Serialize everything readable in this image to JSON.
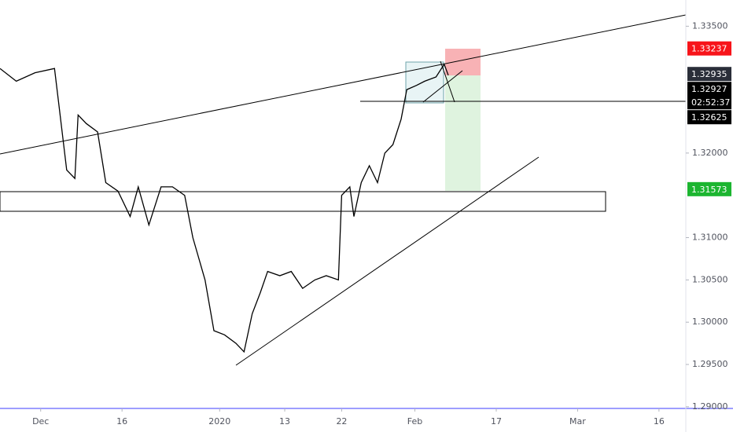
{
  "chart_data": {
    "type": "line",
    "x": [
      -5,
      -3,
      -0.7,
      1.7,
      2.2,
      3.2,
      4.2,
      4.6,
      5.6,
      7,
      8,
      9.5,
      11,
      12,
      13.3,
      14.8,
      16.2,
      17.7,
      18.7,
      20.2,
      21.3,
      22.6,
      24,
      25,
      26,
      27,
      27.9,
      29.4,
      30.8,
      32.2,
      33.7,
      35.1,
      36.6,
      37,
      38,
      38.5,
      39.4,
      40.4,
      41.4,
      42.3,
      43.3,
      44.3,
      45,
      46.2,
      47.2,
      48.6,
      49.6,
      50.1
    ],
    "series": [
      {
        "color": "#000000",
        "values": [
          1.33,
          1.3285,
          1.3295,
          1.33,
          1.326,
          1.318,
          1.317,
          1.3245,
          1.3235,
          1.3225,
          1.3165,
          1.3155,
          1.3125,
          1.316,
          1.3115,
          1.316,
          1.316,
          1.315,
          1.31,
          1.305,
          1.299,
          1.2985,
          1.2975,
          1.2965,
          1.301,
          1.3035,
          1.306,
          1.3055,
          1.306,
          1.304,
          1.305,
          1.3055,
          1.305,
          1.315,
          1.316,
          1.3125,
          1.3165,
          1.3185,
          1.3165,
          1.32,
          1.321,
          1.324,
          1.3275,
          1.328,
          1.3285,
          1.329,
          1.3305,
          1.3292
        ]
      }
    ],
    "xlim": [
      -5,
      79.3
    ],
    "xticks": [
      {
        "value": 0,
        "label": "Dec"
      },
      {
        "value": 10,
        "label": "16"
      },
      {
        "value": 22,
        "label": "2020"
      },
      {
        "value": 30,
        "label": "13"
      },
      {
        "value": 37,
        "label": "22"
      },
      {
        "value": 46,
        "label": "Feb"
      },
      {
        "value": 56,
        "label": "17"
      },
      {
        "value": 66,
        "label": "Mar"
      },
      {
        "value": 76,
        "label": "16"
      }
    ],
    "ylim": [
      1.2898,
      1.3381
    ],
    "yticks": [
      {
        "value": 1.335,
        "label": "1.33500"
      },
      {
        "value": 1.32,
        "label": "1.32000"
      },
      {
        "value": 1.31,
        "label": "1.31000"
      },
      {
        "value": 1.305,
        "label": "1.30500"
      },
      {
        "value": 1.3,
        "label": "1.30000"
      },
      {
        "value": 1.295,
        "label": "1.29500"
      },
      {
        "value": 1.29,
        "label": "1.29000"
      }
    ],
    "price_labels": [
      {
        "value": 1.33237,
        "label": "1.33237",
        "color": "#f7141a"
      },
      {
        "value": 1.32935,
        "label": "1.32935",
        "color": "#2a2e39"
      },
      {
        "value": 1.32927,
        "label": "1.32927",
        "color": "#000000"
      },
      {
        "value": 1.32625,
        "label": "1.32625",
        "color": "#000000"
      },
      {
        "value": 1.31573,
        "label": "1.31573",
        "color": "#1cb530"
      }
    ],
    "countdown": "02:52:37"
  }
}
